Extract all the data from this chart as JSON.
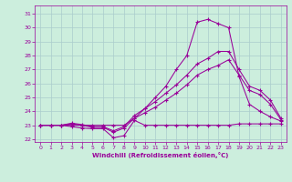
{
  "xlabel": "Windchill (Refroidissement éolien,°C)",
  "bg_color": "#cceedd",
  "grid_color": "#aacccc",
  "line_color": "#990099",
  "xlim": [
    -0.5,
    23.5
  ],
  "ylim": [
    21.8,
    31.6
  ],
  "xticks": [
    0,
    1,
    2,
    3,
    4,
    5,
    6,
    7,
    8,
    9,
    10,
    11,
    12,
    13,
    14,
    15,
    16,
    17,
    18,
    19,
    20,
    21,
    22,
    23
  ],
  "yticks": [
    22,
    23,
    24,
    25,
    26,
    27,
    28,
    29,
    30,
    31
  ],
  "line1_x": [
    0,
    1,
    2,
    3,
    4,
    5,
    6,
    7,
    8,
    9,
    10,
    11,
    12,
    13,
    14,
    15,
    16,
    17,
    18,
    19,
    20,
    21,
    22,
    23
  ],
  "line1_y": [
    23.0,
    23.0,
    23.0,
    22.9,
    22.8,
    22.75,
    22.75,
    22.1,
    22.25,
    23.35,
    23.0,
    23.0,
    23.0,
    23.0,
    23.0,
    23.0,
    23.0,
    23.0,
    23.0,
    23.1,
    23.1,
    23.1,
    23.1,
    23.1
  ],
  "line2_x": [
    0,
    1,
    2,
    3,
    4,
    5,
    6,
    7,
    8,
    9,
    10,
    11,
    12,
    13,
    14,
    15,
    16,
    17,
    18,
    19,
    20,
    21,
    22,
    23
  ],
  "line2_y": [
    23.0,
    23.0,
    23.0,
    23.1,
    23.0,
    22.85,
    22.85,
    22.5,
    22.8,
    23.5,
    23.9,
    24.3,
    24.8,
    25.3,
    25.9,
    26.6,
    27.0,
    27.3,
    27.7,
    26.6,
    25.5,
    25.2,
    24.5,
    23.4
  ],
  "line3_x": [
    0,
    1,
    2,
    3,
    4,
    5,
    6,
    7,
    8,
    9,
    10,
    11,
    12,
    13,
    14,
    15,
    16,
    17,
    18,
    19,
    20,
    21,
    22,
    23
  ],
  "line3_y": [
    23.0,
    23.0,
    23.0,
    23.15,
    23.05,
    22.9,
    22.9,
    22.6,
    22.9,
    23.7,
    24.2,
    24.7,
    25.3,
    25.9,
    26.6,
    27.4,
    27.8,
    28.3,
    28.3,
    27.0,
    25.8,
    25.5,
    24.8,
    23.5
  ],
  "line4_x": [
    0,
    1,
    2,
    3,
    4,
    5,
    6,
    7,
    8,
    9,
    10,
    11,
    12,
    13,
    14,
    15,
    16,
    17,
    18,
    19,
    20,
    21,
    22,
    23
  ],
  "line4_y": [
    23.0,
    23.0,
    23.0,
    23.0,
    23.0,
    23.0,
    23.0,
    23.0,
    23.0,
    23.5,
    24.2,
    25.0,
    25.8,
    27.0,
    28.0,
    30.4,
    30.6,
    30.3,
    30.0,
    26.5,
    24.5,
    24.0,
    23.6,
    23.3
  ]
}
